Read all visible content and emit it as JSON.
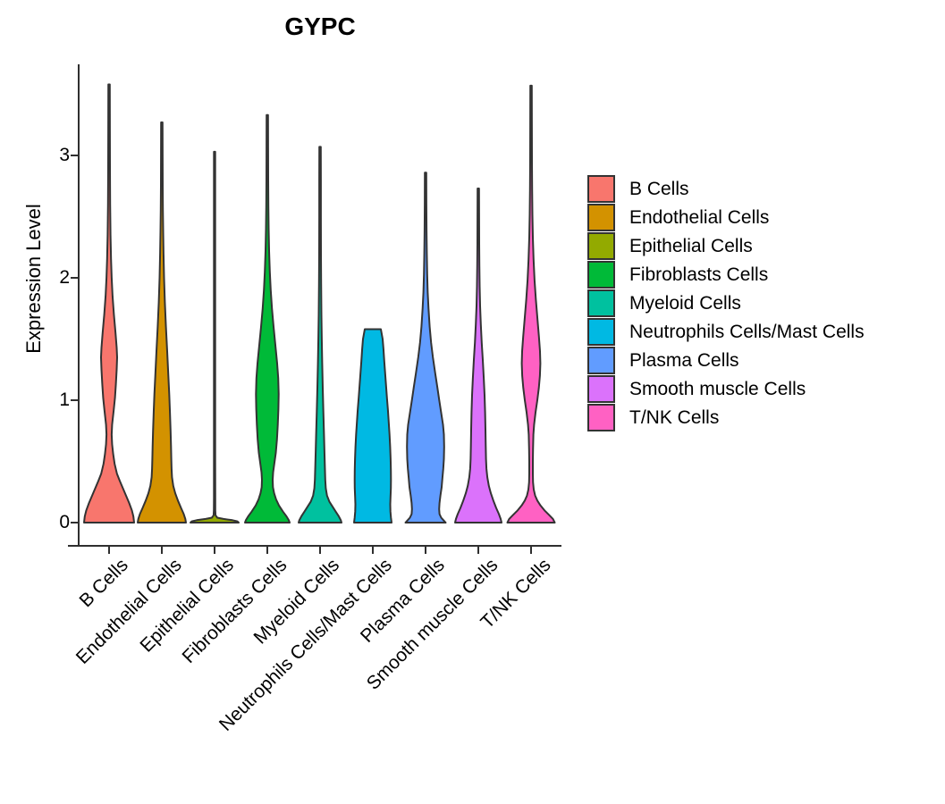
{
  "chart_data": {
    "type": "violin",
    "title": "GYPC",
    "ylabel": "Expression Level",
    "ylim": [
      0,
      3.74
    ],
    "yticks": [
      0,
      1,
      2,
      3
    ],
    "legend_position": "right",
    "background": "#ffffff",
    "outline_color": "#333333",
    "axis_color": "#2f2f2f",
    "text_color": "#000000",
    "categories": [
      "B Cells",
      "Endothelial Cells",
      "Epithelial Cells",
      "Fibroblasts Cells",
      "Myeloid Cells",
      "Neutrophils Cells/Mast Cells",
      "Plasma Cells",
      "Smooth muscle Cells",
      "T/NK Cells"
    ],
    "violins": [
      {
        "label": "B Cells",
        "color": "#F8766D",
        "max_expression": 3.58,
        "profile": [
          [
            3.58,
            0.8
          ],
          [
            3.2,
            0.9
          ],
          [
            2.9,
            1.0
          ],
          [
            2.6,
            1.2
          ],
          [
            2.35,
            1.6
          ],
          [
            2.15,
            2.2
          ],
          [
            2.0,
            2.9
          ],
          [
            1.85,
            3.9
          ],
          [
            1.7,
            5.4
          ],
          [
            1.55,
            7.2
          ],
          [
            1.43,
            8.5
          ],
          [
            1.35,
            9.0
          ],
          [
            1.25,
            8.5
          ],
          [
            1.13,
            7.6
          ],
          [
            1.02,
            6.6
          ],
          [
            0.92,
            5.2
          ],
          [
            0.8,
            3.4
          ],
          [
            0.72,
            2.9
          ],
          [
            0.64,
            3.4
          ],
          [
            0.56,
            4.6
          ],
          [
            0.48,
            6.2
          ],
          [
            0.4,
            8.8
          ],
          [
            0.34,
            12.0
          ],
          [
            0.28,
            15.5
          ],
          [
            0.22,
            19.0
          ],
          [
            0.16,
            22.5
          ],
          [
            0.1,
            25.5
          ],
          [
            0.05,
            27.2
          ],
          [
            0,
            28.0
          ]
        ]
      },
      {
        "label": "Endothelial Cells",
        "color": "#D39200",
        "max_expression": 3.27,
        "profile": [
          [
            3.27,
            0.8
          ],
          [
            3.0,
            0.9
          ],
          [
            2.75,
            1.0
          ],
          [
            2.55,
            1.2
          ],
          [
            2.38,
            1.5
          ],
          [
            2.2,
            1.9
          ],
          [
            2.0,
            2.5
          ],
          [
            1.8,
            3.4
          ],
          [
            1.6,
            4.6
          ],
          [
            1.4,
            6.0
          ],
          [
            1.2,
            7.3
          ],
          [
            1.05,
            8.3
          ],
          [
            0.9,
            9.1
          ],
          [
            0.75,
            9.8
          ],
          [
            0.62,
            10.3
          ],
          [
            0.52,
            10.6
          ],
          [
            0.44,
            10.9
          ],
          [
            0.37,
            11.4
          ],
          [
            0.3,
            12.8
          ],
          [
            0.24,
            15.0
          ],
          [
            0.18,
            18.0
          ],
          [
            0.12,
            21.5
          ],
          [
            0.07,
            24.5
          ],
          [
            0.03,
            26.3
          ],
          [
            0,
            27.0
          ]
        ]
      },
      {
        "label": "Epithelial Cells",
        "color": "#93AA00",
        "max_expression": 3.03,
        "profile": [
          [
            3.03,
            0.7
          ],
          [
            2.5,
            0.7
          ],
          [
            2.0,
            0.7
          ],
          [
            1.5,
            0.7
          ],
          [
            1.0,
            0.7
          ],
          [
            0.5,
            0.7
          ],
          [
            0.2,
            0.75
          ],
          [
            0.1,
            0.85
          ],
          [
            0.06,
            1.1
          ],
          [
            0.04,
            3.0
          ],
          [
            0.03,
            10.0
          ],
          [
            0.02,
            20.0
          ],
          [
            0.01,
            25.5
          ],
          [
            0,
            27.0
          ]
        ]
      },
      {
        "label": "Fibroblasts Cells",
        "color": "#00BA38",
        "max_expression": 3.33,
        "profile": [
          [
            3.33,
            0.8
          ],
          [
            3.05,
            0.9
          ],
          [
            2.8,
            1.0
          ],
          [
            2.58,
            1.2
          ],
          [
            2.4,
            1.5
          ],
          [
            2.22,
            2.0
          ],
          [
            2.05,
            2.8
          ],
          [
            1.9,
            3.8
          ],
          [
            1.75,
            5.2
          ],
          [
            1.6,
            7.0
          ],
          [
            1.45,
            9.0
          ],
          [
            1.3,
            11.0
          ],
          [
            1.18,
            12.2
          ],
          [
            1.05,
            12.7
          ],
          [
            0.93,
            12.4
          ],
          [
            0.8,
            11.7
          ],
          [
            0.68,
            10.8
          ],
          [
            0.57,
            9.5
          ],
          [
            0.48,
            7.8
          ],
          [
            0.41,
            6.5
          ],
          [
            0.35,
            6.0
          ],
          [
            0.29,
            6.3
          ],
          [
            0.24,
            7.6
          ],
          [
            0.19,
            9.8
          ],
          [
            0.14,
            13.0
          ],
          [
            0.09,
            17.5
          ],
          [
            0.05,
            21.5
          ],
          [
            0.02,
            24.0
          ],
          [
            0,
            25.0
          ]
        ]
      },
      {
        "label": "Myeloid Cells",
        "color": "#00C19F",
        "max_expression": 3.07,
        "profile": [
          [
            3.07,
            0.8
          ],
          [
            2.8,
            0.85
          ],
          [
            2.5,
            0.9
          ],
          [
            2.2,
            1.0
          ],
          [
            1.95,
            1.2
          ],
          [
            1.7,
            1.5
          ],
          [
            1.5,
            1.9
          ],
          [
            1.3,
            2.4
          ],
          [
            1.1,
            3.0
          ],
          [
            0.9,
            3.7
          ],
          [
            0.72,
            4.4
          ],
          [
            0.58,
            4.9
          ],
          [
            0.45,
            5.4
          ],
          [
            0.35,
            5.8
          ],
          [
            0.28,
            6.4
          ],
          [
            0.22,
            7.8
          ],
          [
            0.17,
            10.5
          ],
          [
            0.13,
            14.0
          ],
          [
            0.09,
            17.5
          ],
          [
            0.05,
            21.0
          ],
          [
            0.02,
            23.2
          ],
          [
            0,
            24.0
          ]
        ]
      },
      {
        "label": "Neutrophils Cells/Mast Cells",
        "color": "#00B9E3",
        "max_expression": 1.58,
        "profile": [
          [
            1.58,
            9.0
          ],
          [
            1.5,
            11.0
          ],
          [
            1.42,
            11.9
          ],
          [
            1.32,
            12.8
          ],
          [
            1.22,
            13.8
          ],
          [
            1.12,
            14.8
          ],
          [
            1.02,
            15.8
          ],
          [
            0.92,
            16.9
          ],
          [
            0.82,
            17.8
          ],
          [
            0.72,
            18.7
          ],
          [
            0.62,
            19.4
          ],
          [
            0.52,
            19.9
          ],
          [
            0.43,
            20.2
          ],
          [
            0.35,
            20.3
          ],
          [
            0.28,
            20.2
          ],
          [
            0.21,
            19.8
          ],
          [
            0.15,
            19.5
          ],
          [
            0.09,
            19.7
          ],
          [
            0.04,
            20.3
          ],
          [
            0,
            21.0
          ]
        ]
      },
      {
        "label": "Plasma Cells",
        "color": "#619CFF",
        "max_expression": 2.86,
        "profile": [
          [
            2.86,
            0.8
          ],
          [
            2.6,
            0.9
          ],
          [
            2.38,
            1.1
          ],
          [
            2.2,
            1.4
          ],
          [
            2.03,
            1.8
          ],
          [
            1.88,
            2.4
          ],
          [
            1.75,
            3.3
          ],
          [
            1.6,
            4.6
          ],
          [
            1.47,
            6.2
          ],
          [
            1.35,
            8.2
          ],
          [
            1.22,
            10.8
          ],
          [
            1.1,
            13.3
          ],
          [
            1.0,
            15.3
          ],
          [
            0.9,
            17.4
          ],
          [
            0.8,
            19.5
          ],
          [
            0.72,
            20.5
          ],
          [
            0.62,
            20.8
          ],
          [
            0.52,
            20.5
          ],
          [
            0.44,
            19.8
          ],
          [
            0.36,
            18.8
          ],
          [
            0.29,
            18.0
          ],
          [
            0.22,
            16.6
          ],
          [
            0.16,
            15.6
          ],
          [
            0.11,
            15.2
          ],
          [
            0.07,
            15.6
          ],
          [
            0.04,
            17.5
          ],
          [
            0.02,
            20.0
          ],
          [
            0,
            22.5
          ]
        ]
      },
      {
        "label": "Smooth muscle Cells",
        "color": "#DB72FB",
        "max_expression": 2.73,
        "profile": [
          [
            2.73,
            0.8
          ],
          [
            2.5,
            0.9
          ],
          [
            2.28,
            1.0
          ],
          [
            2.1,
            1.2
          ],
          [
            1.93,
            1.5
          ],
          [
            1.77,
            2.0
          ],
          [
            1.62,
            2.8
          ],
          [
            1.47,
            3.8
          ],
          [
            1.33,
            5.0
          ],
          [
            1.18,
            6.1
          ],
          [
            1.04,
            7.0
          ],
          [
            0.9,
            7.6
          ],
          [
            0.76,
            8.0
          ],
          [
            0.63,
            8.3
          ],
          [
            0.52,
            8.6
          ],
          [
            0.44,
            9.1
          ],
          [
            0.37,
            10.1
          ],
          [
            0.3,
            11.8
          ],
          [
            0.24,
            14.0
          ],
          [
            0.18,
            16.8
          ],
          [
            0.12,
            20.0
          ],
          [
            0.07,
            23.0
          ],
          [
            0.03,
            25.0
          ],
          [
            0,
            26.0
          ]
        ]
      },
      {
        "label": "T/NK Cells",
        "color": "#FF61C3",
        "max_expression": 3.57,
        "profile": [
          [
            3.57,
            0.8
          ],
          [
            3.25,
            0.9
          ],
          [
            2.95,
            1.0
          ],
          [
            2.72,
            1.2
          ],
          [
            2.52,
            1.5
          ],
          [
            2.33,
            2.0
          ],
          [
            2.15,
            2.8
          ],
          [
            1.98,
            3.9
          ],
          [
            1.82,
            5.4
          ],
          [
            1.66,
            7.2
          ],
          [
            1.52,
            8.8
          ],
          [
            1.4,
            10.0
          ],
          [
            1.3,
            10.4
          ],
          [
            1.2,
            9.9
          ],
          [
            1.1,
            8.7
          ],
          [
            1.0,
            7.0
          ],
          [
            0.9,
            5.0
          ],
          [
            0.8,
            3.4
          ],
          [
            0.72,
            2.6
          ],
          [
            0.6,
            2.2
          ],
          [
            0.5,
            2.0
          ],
          [
            0.4,
            2.0
          ],
          [
            0.33,
            2.2
          ],
          [
            0.27,
            3.0
          ],
          [
            0.22,
            4.6
          ],
          [
            0.18,
            7.0
          ],
          [
            0.14,
            10.5
          ],
          [
            0.1,
            15.0
          ],
          [
            0.06,
            20.5
          ],
          [
            0.03,
            24.5
          ],
          [
            0,
            26.5
          ]
        ]
      }
    ]
  }
}
